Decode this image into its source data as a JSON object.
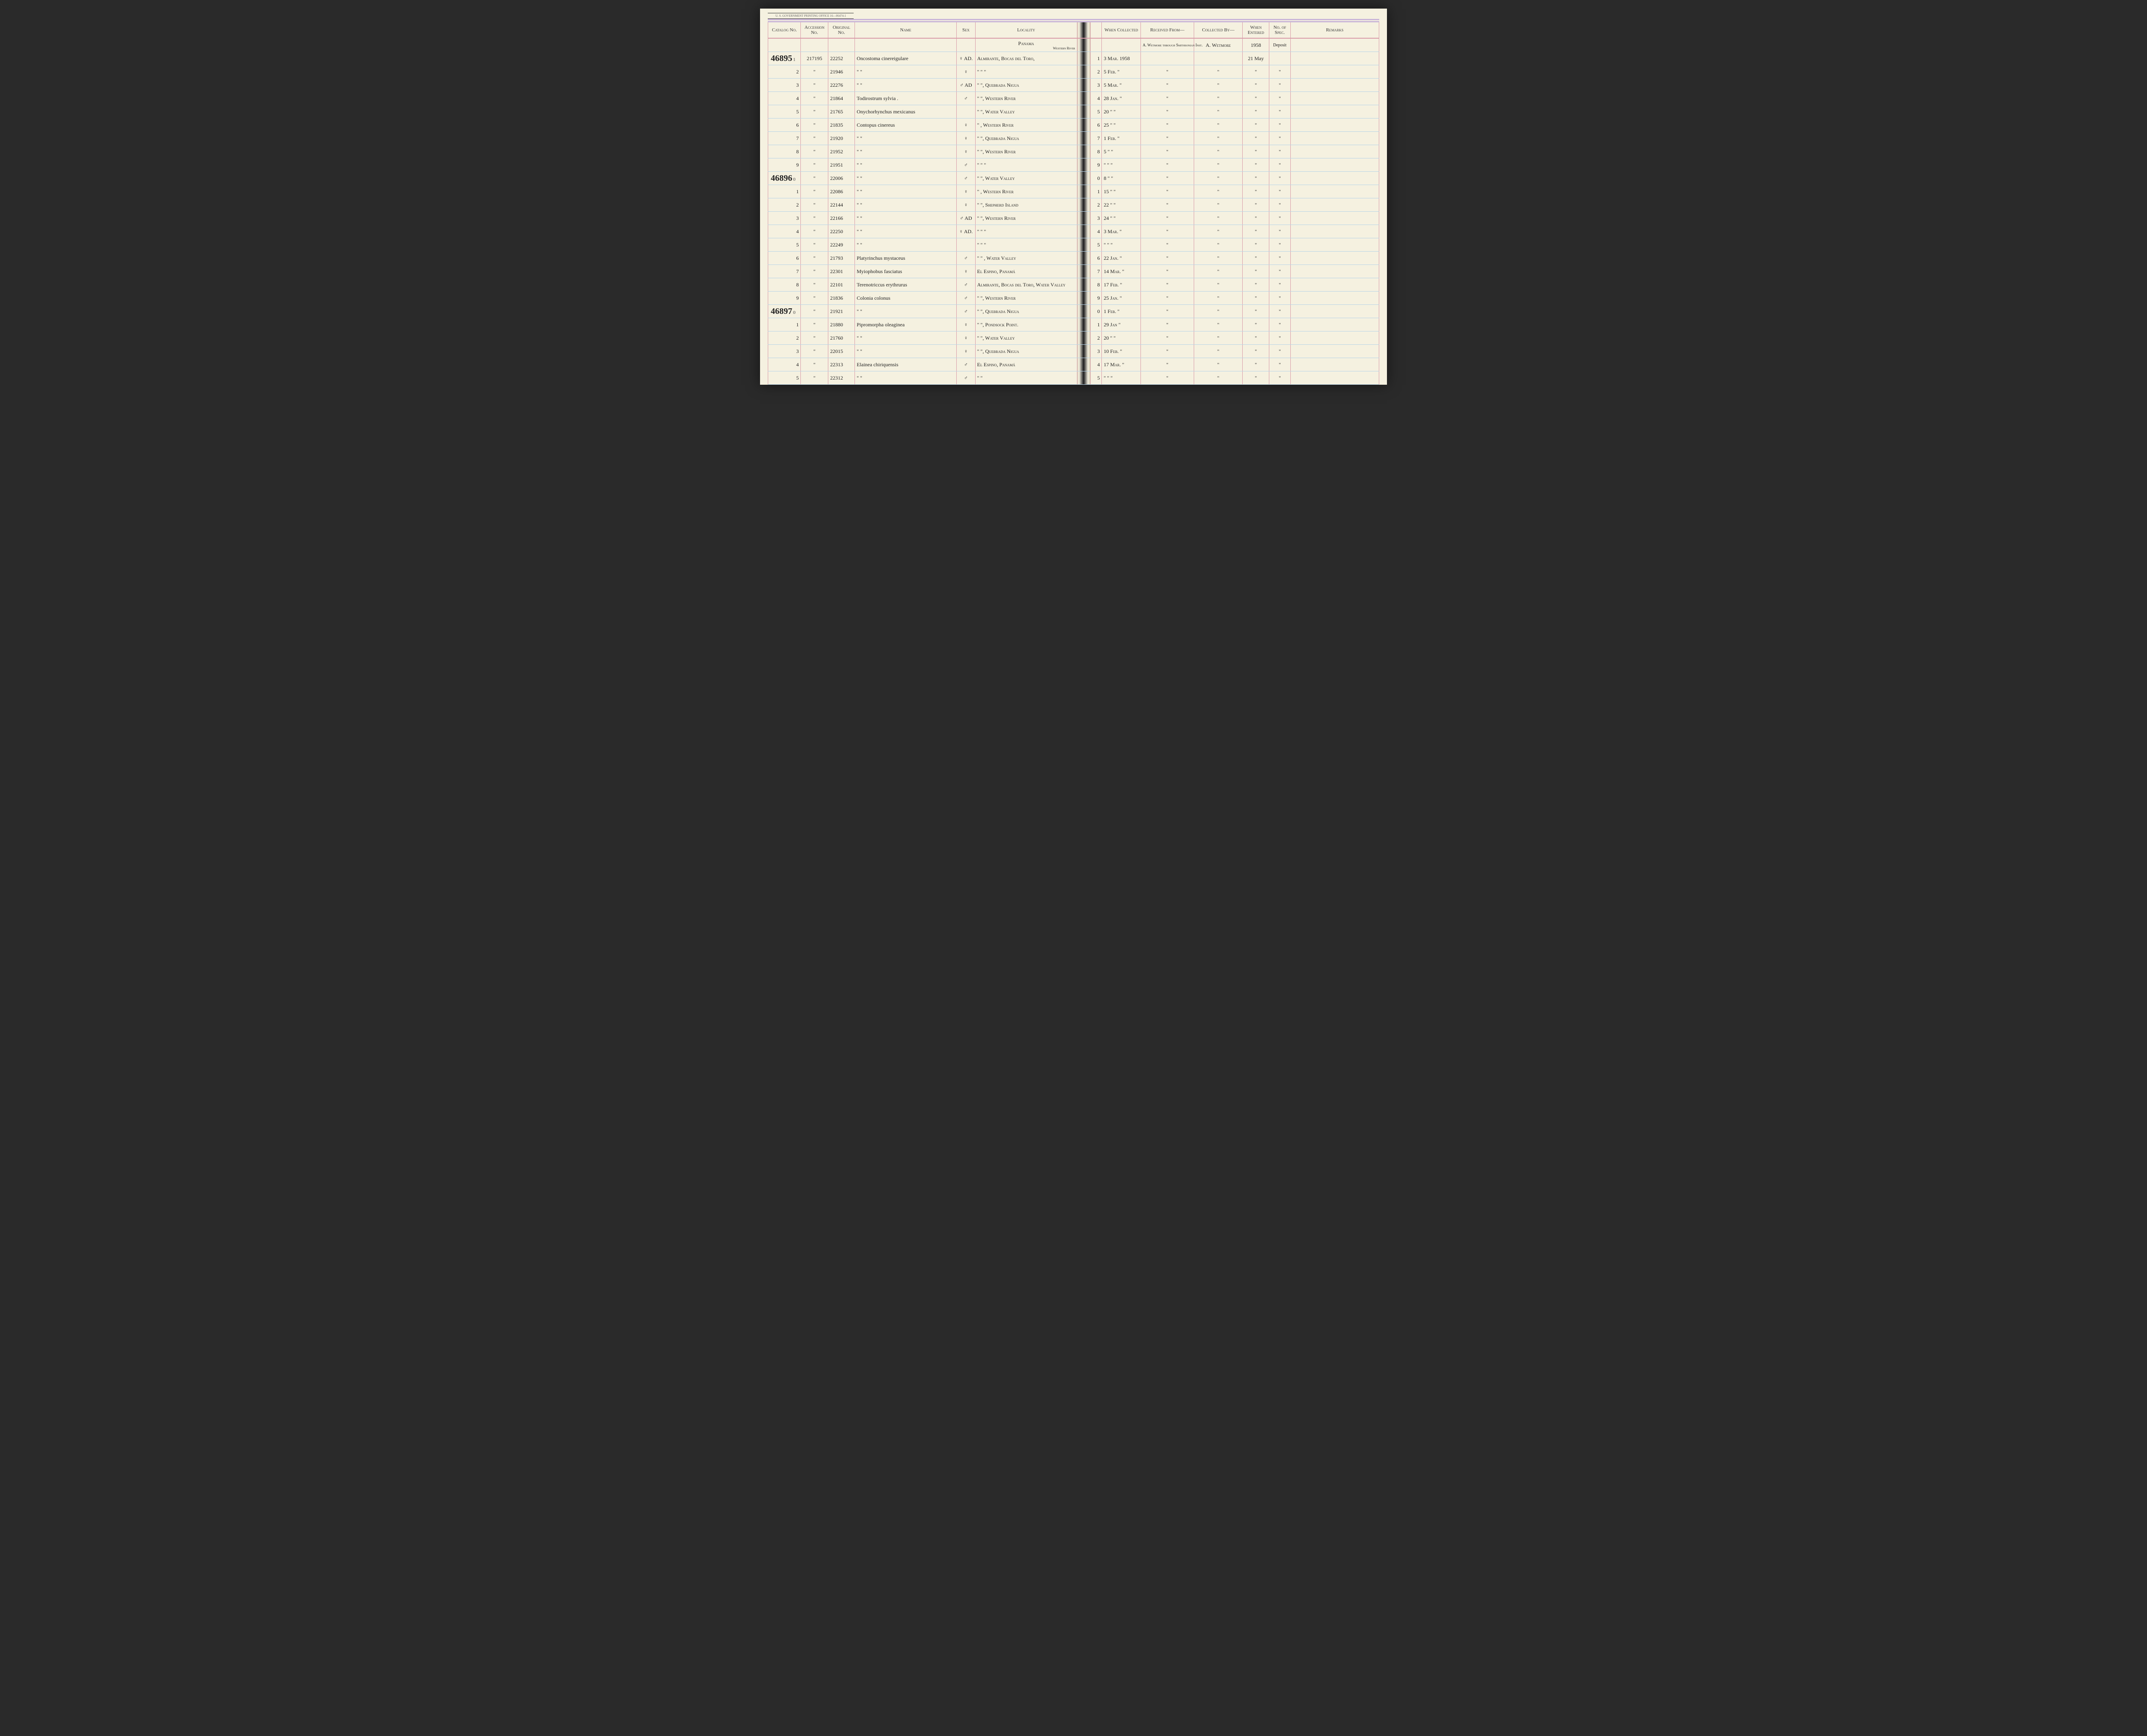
{
  "headers": {
    "catalog": "Catalog No.",
    "accession": "Accession No.",
    "original": "Original No.",
    "name": "Name",
    "sex": "Sex",
    "locality": "Locality",
    "when_collected": "When Collected",
    "received_from": "Received From—",
    "collected_by": "Collected By—",
    "when_entered": "When Entered",
    "no_of_spec": "No. of Spec.",
    "remarks": "Remarks"
  },
  "header_annotations": {
    "locality_top": "Panama",
    "locality_sub": "Western River",
    "received_from": "A. Wetmore through Smithsonian Inst.",
    "collected_by": "A. Wetmore",
    "when_entered_year": "1958",
    "no_of_spec": "Deposit"
  },
  "govt_print": "U. S. GOVERNMENT PRINTING OFFICE    16—06474-1",
  "catalog_blocks": [
    {
      "row": 0,
      "label": "46895"
    },
    {
      "row": 9,
      "label": "46896"
    },
    {
      "row": 19,
      "label": "46897"
    }
  ],
  "rows": [
    {
      "sub": "1",
      "acc": "217195",
      "orig": "22252",
      "name": "Oncostoma cinereigulare",
      "sex": "♀ AD.",
      "loc": "Almirante, Bocas del Toro,",
      "when": "3 Mar. 1958",
      "recv": "",
      "coll": "",
      "ent": "21 May",
      "spec": ""
    },
    {
      "sub": "2",
      "acc": "\"",
      "orig": "21946",
      "name": "\"          \"",
      "sex": "♀",
      "loc": "\"        \"        \"",
      "when": "5 Feb. \"",
      "recv": "\"",
      "coll": "\"",
      "ent": "\"",
      "spec": "\""
    },
    {
      "sub": "3",
      "acc": "\"",
      "orig": "22276",
      "name": "\"          \"",
      "sex": "♂ AD",
      "loc": "\"     \", Quebrada Nigua",
      "when": "5 Mar. \"",
      "recv": "\"",
      "coll": "\"",
      "ent": "\"",
      "spec": "\""
    },
    {
      "sub": "4",
      "acc": "\"",
      "orig": "21864",
      "name": "Todirostrum sylvia .",
      "sex": "♂",
      "loc": "\"     \", Western River",
      "when": "28 Jan. \"",
      "recv": "\"",
      "coll": "\"",
      "ent": "\"",
      "spec": "\""
    },
    {
      "sub": "5",
      "acc": "\"",
      "orig": "21765",
      "name": "Onychorhynchus mexicanus",
      "sex": "",
      "loc": "\"     \", Water Valley",
      "when": "20  \"   \"",
      "recv": "\"",
      "coll": "\"",
      "ent": "\"",
      "spec": "\""
    },
    {
      "sub": "6",
      "acc": "\"",
      "orig": "21835",
      "name": "Contopus cinereus",
      "sex": "♀",
      "loc": "\"     , Western River",
      "when": "25  \"  \"",
      "recv": "\"",
      "coll": "\"",
      "ent": "\"",
      "spec": "\""
    },
    {
      "sub": "7",
      "acc": "\"",
      "orig": "21920",
      "name": "\"        \"",
      "sex": "♀",
      "loc": "\"     \", Quebrada Nigua",
      "when": "1 Feb. \"",
      "recv": "\"",
      "coll": "\"",
      "ent": "\"",
      "spec": "\""
    },
    {
      "sub": "8",
      "acc": "\"",
      "orig": "21952",
      "name": "\"        \"",
      "sex": "♀",
      "loc": "\"     \", Western River",
      "when": "5   \"   \"",
      "recv": "\"",
      "coll": "\"",
      "ent": "\"",
      "spec": "\""
    },
    {
      "sub": "9",
      "acc": "\"",
      "orig": "21951",
      "name": "\"        \"",
      "sex": "♂",
      "loc": "\"     \"     \"",
      "when": "\"   \"   \"",
      "recv": "\"",
      "coll": "\"",
      "ent": "\"",
      "spec": "\""
    },
    {
      "sub": "0",
      "acc": "\"",
      "orig": "22006",
      "name": "\"        \"",
      "sex": "♂",
      "loc": "\"     \", Water Valley",
      "when": "8   \"   \"",
      "recv": "\"",
      "coll": "\"",
      "ent": "\"",
      "spec": "\""
    },
    {
      "sub": "1",
      "acc": "\"",
      "orig": "22086",
      "name": "\"        \"",
      "sex": "♀",
      "loc": "\"     , Western River",
      "when": "15  \"   \"",
      "recv": "\"",
      "coll": "\"",
      "ent": "\"",
      "spec": "\""
    },
    {
      "sub": "2",
      "acc": "\"",
      "orig": "22144",
      "name": "\"        \"",
      "sex": "♀",
      "loc": "\"     \", Shepherd Island",
      "when": "22  \"  \"",
      "recv": "\"",
      "coll": "\"",
      "ent": "\"",
      "spec": "\""
    },
    {
      "sub": "3",
      "acc": "\"",
      "orig": "22166",
      "name": "\"        \"",
      "sex": "♂ AD",
      "loc": "\"     \", Western River",
      "when": "24  \"   \"",
      "recv": "\"",
      "coll": "\"",
      "ent": "\"",
      "spec": "\""
    },
    {
      "sub": "4",
      "acc": "\"",
      "orig": "22250",
      "name": "\"        \"",
      "sex": "♀ AD.",
      "loc": "\"     \"     \"",
      "when": "3 Mar. \"",
      "recv": "\"",
      "coll": "\"",
      "ent": "\"",
      "spec": "\""
    },
    {
      "sub": "5",
      "acc": "\"",
      "orig": "22249",
      "name": "\"        \"",
      "sex": "",
      "loc": "\"     \"     \"",
      "when": "\"   \"   \"",
      "recv": "\"",
      "coll": "\"",
      "ent": "\"",
      "spec": "\""
    },
    {
      "sub": "6",
      "acc": "\"",
      "orig": "21793",
      "name": "Platyrinchus mystaceus",
      "sex": "♂",
      "loc": "\"    \"  , Water Valley",
      "when": "22 Jan. \"",
      "recv": "\"",
      "coll": "\"",
      "ent": "\"",
      "spec": "\""
    },
    {
      "sub": "7",
      "acc": "\"",
      "orig": "22301",
      "name": "Myiophobus fasciatus",
      "sex": "♀",
      "loc": "El Espino, Panamá",
      "when": "14 Mar. \"",
      "recv": "\"",
      "coll": "\"",
      "ent": "\"",
      "spec": "\""
    },
    {
      "sub": "8",
      "acc": "\"",
      "orig": "22101",
      "name": "Terenotriccus erythrurus",
      "sex": "♂",
      "loc": "Almirante, Bocas del Toro, Water Valley",
      "when": "17 Feb. \"",
      "recv": "\"",
      "coll": "\"",
      "ent": "\"",
      "spec": "\""
    },
    {
      "sub": "9",
      "acc": "\"",
      "orig": "21836",
      "name": "Colonia colonus",
      "sex": "♂",
      "loc": "\"     \", Western River",
      "when": "25 Jan. \"",
      "recv": "\"",
      "coll": "\"",
      "ent": "\"",
      "spec": "\""
    },
    {
      "sub": "0",
      "acc": "\"",
      "orig": "21921",
      "name": "\"        \"",
      "sex": "♂",
      "loc": "\"     \", Quebrada Nigua",
      "when": "1 Feb. \"",
      "recv": "\"",
      "coll": "\"",
      "ent": "\"",
      "spec": "\""
    },
    {
      "sub": "1",
      "acc": "\"",
      "orig": "21880",
      "name": "Pipromorpha oleaginea",
      "sex": "♀",
      "loc": "\"     \", Pondsock Point.",
      "when": "29 Jan \"",
      "recv": "\"",
      "coll": "\"",
      "ent": "\"",
      "spec": "\""
    },
    {
      "sub": "2",
      "acc": "\"",
      "orig": "21760",
      "name": "\"        \"",
      "sex": "♀",
      "loc": "\"     \", Water Valley",
      "when": "20  \"   \"",
      "recv": "\"",
      "coll": "\"",
      "ent": "\"",
      "spec": "\""
    },
    {
      "sub": "3",
      "acc": "\"",
      "orig": "22015",
      "name": "\"        \"",
      "sex": "♀",
      "loc": "\"     \", Quebrada Nigua",
      "when": "10 Feb. \"",
      "recv": "\"",
      "coll": "\"",
      "ent": "\"",
      "spec": "\""
    },
    {
      "sub": "4",
      "acc": "\"",
      "orig": "22313",
      "name": "Elainea chiriquensis",
      "sex": "♂",
      "loc": "El Espino, Panamá",
      "when": "17 Mar. \"",
      "recv": "\"",
      "coll": "\"",
      "ent": "\"",
      "spec": "\""
    },
    {
      "sub": "5",
      "acc": "\"",
      "orig": "22312",
      "name": "\"        \"",
      "sex": "♂",
      "loc": "\"        \"",
      "when": "\"   \"   \"",
      "recv": "\"",
      "coll": "\"",
      "ent": "\"",
      "spec": "\""
    }
  ]
}
